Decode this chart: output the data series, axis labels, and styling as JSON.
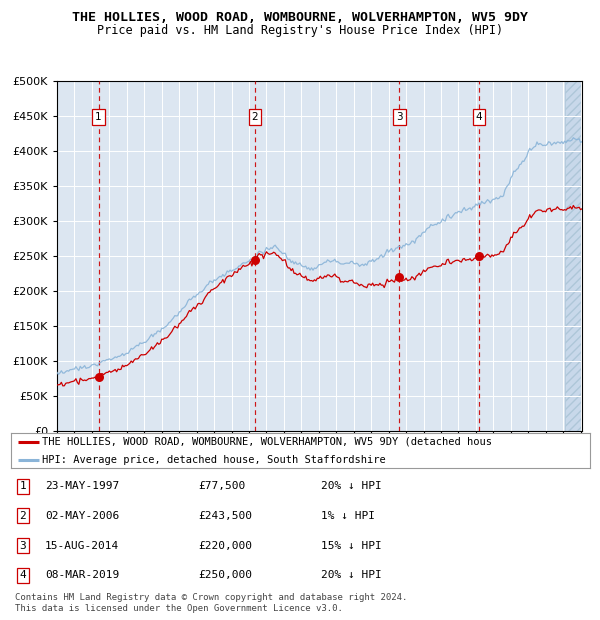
{
  "title": "THE HOLLIES, WOOD ROAD, WOMBOURNE, WOLVERHAMPTON, WV5 9DY",
  "subtitle": "Price paid vs. HM Land Registry's House Price Index (HPI)",
  "ylim": [
    0,
    500000
  ],
  "yticks": [
    0,
    50000,
    100000,
    150000,
    200000,
    250000,
    300000,
    350000,
    400000,
    450000,
    500000
  ],
  "ytick_labels": [
    "£0",
    "£50K",
    "£100K",
    "£150K",
    "£200K",
    "£250K",
    "£300K",
    "£350K",
    "£400K",
    "£450K",
    "£500K"
  ],
  "background_color": "#dce6f1",
  "grid_color": "#ffffff",
  "hpi_line_color": "#8ab4d8",
  "price_line_color": "#cc0000",
  "sale_marker_color": "#cc0000",
  "dashed_line_color": "#cc0000",
  "legend_border_color": "#aaaaaa",
  "hpi_legend_label": "HPI: Average price, detached house, South Staffordshire",
  "price_legend_label": "THE HOLLIES, WOOD ROAD, WOMBOURNE, WOLVERHAMPTON, WV5 9DY (detached hous",
  "sales": [
    {
      "num": 1,
      "date_num": 1997.38,
      "price": 77500
    },
    {
      "num": 2,
      "date_num": 2006.33,
      "price": 243500
    },
    {
      "num": 3,
      "date_num": 2014.62,
      "price": 220000
    },
    {
      "num": 4,
      "date_num": 2019.18,
      "price": 250000
    }
  ],
  "table_rows": [
    {
      "num": 1,
      "date": "23-MAY-1997",
      "price": "£77,500",
      "pct": "20% ↓ HPI"
    },
    {
      "num": 2,
      "date": "02-MAY-2006",
      "price": "£243,500",
      "pct": "1% ↓ HPI"
    },
    {
      "num": 3,
      "date": "15-AUG-2014",
      "price": "£220,000",
      "pct": "15% ↓ HPI"
    },
    {
      "num": 4,
      "date": "08-MAR-2019",
      "price": "£250,000",
      "pct": "20% ↓ HPI"
    }
  ],
  "footer": "Contains HM Land Registry data © Crown copyright and database right 2024.\nThis data is licensed under the Open Government Licence v3.0."
}
